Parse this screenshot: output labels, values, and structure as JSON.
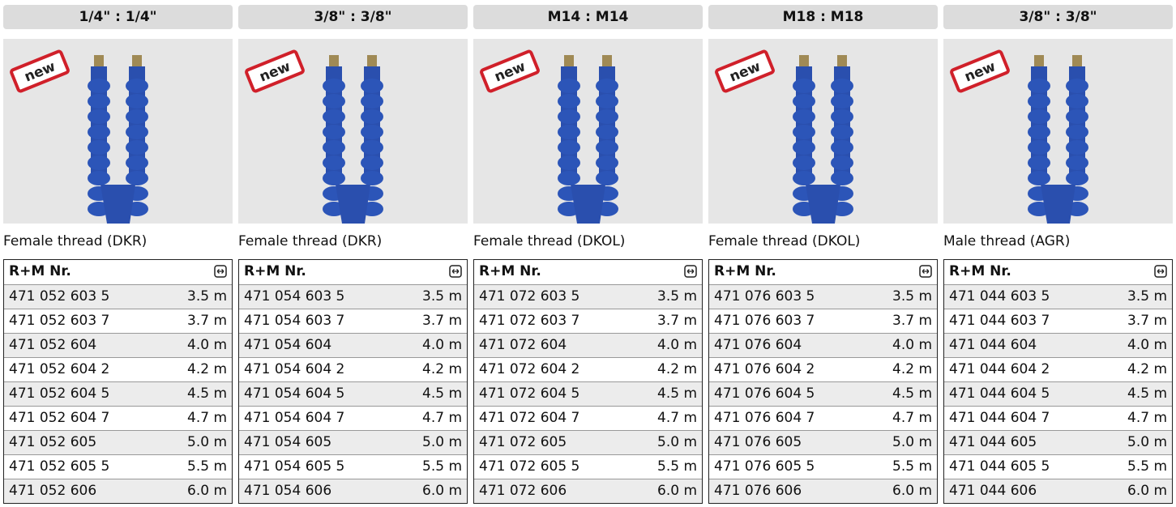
{
  "columns": [
    {
      "header": "1/4\" : 1/4\"",
      "badge": "new",
      "caption": "Female thread (DKR)",
      "table": {
        "col_header": "R+M Nr.",
        "rows": [
          [
            "471 052 603 5",
            "3.5 m"
          ],
          [
            "471 052 603 7",
            "3.7 m"
          ],
          [
            "471 052 604",
            "4.0 m"
          ],
          [
            "471 052 604 2",
            "4.2 m"
          ],
          [
            "471 052 604 5",
            "4.5 m"
          ],
          [
            "471 052 604 7",
            "4.7 m"
          ],
          [
            "471 052 605",
            "5.0 m"
          ],
          [
            "471 052 605 5",
            "5.5 m"
          ],
          [
            "471 052 606",
            "6.0 m"
          ]
        ]
      }
    },
    {
      "header": "3/8\" : 3/8\"",
      "badge": "new",
      "caption": "Female thread (DKR)",
      "table": {
        "col_header": "R+M Nr.",
        "rows": [
          [
            "471 054 603 5",
            "3.5 m"
          ],
          [
            "471 054 603 7",
            "3.7 m"
          ],
          [
            "471 054 604",
            "4.0 m"
          ],
          [
            "471 054 604 2",
            "4.2 m"
          ],
          [
            "471 054 604 5",
            "4.5 m"
          ],
          [
            "471 054 604 7",
            "4.7 m"
          ],
          [
            "471 054 605",
            "5.0 m"
          ],
          [
            "471 054 605 5",
            "5.5 m"
          ],
          [
            "471 054 606",
            "6.0 m"
          ]
        ]
      }
    },
    {
      "header": "M14 : M14",
      "badge": "new",
      "caption": "Female thread (DKOL)",
      "table": {
        "col_header": "R+M Nr.",
        "rows": [
          [
            "471 072 603 5",
            "3.5 m"
          ],
          [
            "471 072 603 7",
            "3.7 m"
          ],
          [
            "471 072 604",
            "4.0 m"
          ],
          [
            "471 072 604 2",
            "4.2 m"
          ],
          [
            "471 072 604 5",
            "4.5 m"
          ],
          [
            "471 072 604 7",
            "4.7 m"
          ],
          [
            "471 072 605",
            "5.0 m"
          ],
          [
            "471 072 605 5",
            "5.5 m"
          ],
          [
            "471 072 606",
            "6.0 m"
          ]
        ]
      }
    },
    {
      "header": "M18 : M18",
      "badge": "new",
      "caption": "Female thread (DKOL)",
      "table": {
        "col_header": "R+M Nr.",
        "rows": [
          [
            "471 076 603 5",
            "3.5 m"
          ],
          [
            "471 076 603 7",
            "3.7 m"
          ],
          [
            "471 076 604",
            "4.0 m"
          ],
          [
            "471 076 604 2",
            "4.2 m"
          ],
          [
            "471 076 604 5",
            "4.5 m"
          ],
          [
            "471 076 604 7",
            "4.7 m"
          ],
          [
            "471 076 605",
            "5.0 m"
          ],
          [
            "471 076 605 5",
            "5.5 m"
          ],
          [
            "471 076 606",
            "6.0 m"
          ]
        ]
      }
    },
    {
      "header": "3/8\" : 3/8\"",
      "badge": "new",
      "caption": "Male thread (AGR)",
      "table": {
        "col_header": "R+M Nr.",
        "rows": [
          [
            "471 044 603 5",
            "3.5 m"
          ],
          [
            "471 044 603 7",
            "3.7 m"
          ],
          [
            "471 044 604",
            "4.0 m"
          ],
          [
            "471 044 604 2",
            "4.2 m"
          ],
          [
            "471 044 604 5",
            "4.5 m"
          ],
          [
            "471 044 604 7",
            "4.7 m"
          ],
          [
            "471 044 605",
            "5.0 m"
          ],
          [
            "471 044 605 5",
            "5.5 m"
          ],
          [
            "471 044 606",
            "6.0 m"
          ]
        ]
      }
    }
  ]
}
